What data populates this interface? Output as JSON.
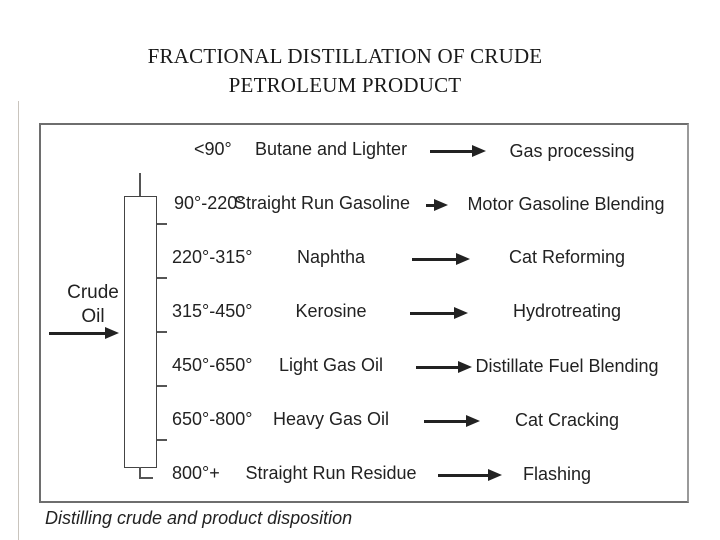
{
  "title": {
    "line1": "FRACTIONAL DISTILLATION OF CRUDE",
    "line2": "PETROLEUM PRODUCT"
  },
  "diagram": {
    "feed_label": [
      "Crude",
      "Oil"
    ],
    "caption": "Distilling crude and product disposition",
    "rows": [
      {
        "temp": "<90°",
        "product": "Butane and Lighter",
        "disposition": "Gas processing"
      },
      {
        "temp": "90°-220°",
        "product": "Straight Run Gasoline",
        "disposition": "Motor Gasoline Blending"
      },
      {
        "temp": "220°-315°",
        "product": "Naphtha",
        "disposition": "Cat Reforming"
      },
      {
        "temp": "315°-450°",
        "product": "Kerosine",
        "disposition": "Hydrotreating"
      },
      {
        "temp": "450°-650°",
        "product": "Light Gas Oil",
        "disposition": "Distillate Fuel Blending"
      },
      {
        "temp": "650°-800°",
        "product": "Heavy Gas Oil",
        "disposition": "Cat Cracking"
      },
      {
        "temp": "800°+",
        "product": "Straight Run Residue",
        "disposition": "Flashing"
      }
    ]
  }
}
